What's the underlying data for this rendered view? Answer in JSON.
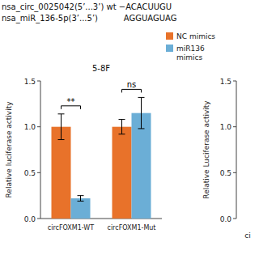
{
  "chart_data": [
    {
      "type": "bar",
      "title": "nsa_circ_0025042(5’...3’) wt −ACACUUGU\nnsa_miR_136-5p(3’...5’)          AGGUAGUAG",
      "subtitle": "5-8F",
      "ylabel": "Relative luciferase activity",
      "categories": [
        "circFOXM1-WT",
        "circFOXM1-Mut"
      ],
      "series": [
        {
          "name": "NC mimics",
          "color": "#E8722A",
          "values": [
            1.0,
            1.0
          ],
          "errors": [
            0.14,
            0.08
          ]
        },
        {
          "name": "miR136\nmimics",
          "color": "#6BAED6",
          "values": [
            0.22,
            1.15
          ],
          "errors": [
            0.03,
            0.17
          ]
        }
      ],
      "ylim": [
        0,
        1.5
      ],
      "yticks": [
        {
          "value": 0,
          "label": "0.0"
        },
        0.5,
        {
          "value": 1.0,
          "label": "1.0"
        },
        1.5
      ],
      "annotations": [
        {
          "text": "**",
          "category": "circFOXM1-WT"
        },
        {
          "text": "ns",
          "category": "circFOXM1-Mut"
        }
      ],
      "legend": "upper right",
      "grid": false
    },
    {
      "type": "bar",
      "ylabel": "Relative Luciferase activity",
      "xlabel": "ci",
      "ylim": [
        0,
        1.5
      ],
      "yticks": [
        {
          "value": 0,
          "label": "0.0"
        },
        0.5,
        {
          "value": 1.0,
          "label": "1.0"
        },
        1.5
      ]
    }
  ]
}
